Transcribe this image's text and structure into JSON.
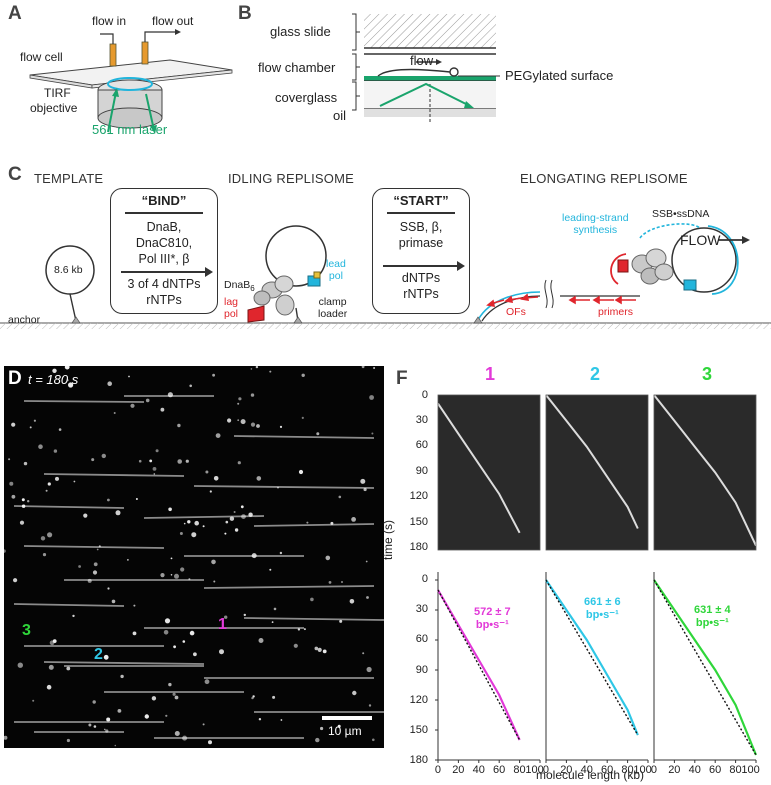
{
  "panels": {
    "a": "A",
    "b": "B",
    "c": "C",
    "d": "D",
    "f": "F"
  },
  "panel_a": {
    "flow_in": "flow in",
    "flow_out": "flow out",
    "flow_cell": "flow cell",
    "tirf": "TIRF",
    "objective": "objective",
    "laser": "561 nm laser"
  },
  "panel_b": {
    "glass_slide": "glass slide",
    "flow_chamber": "flow chamber",
    "coverglass": "coverglass",
    "oil": "oil",
    "flow": "flow",
    "peg_surface": "PEGylated surface"
  },
  "panel_c": {
    "template_head": "TEMPLATE",
    "idling_head": "IDLING REPLISOME",
    "elongating_head": "ELONGATING REPLISOME",
    "bind_title": "“BIND”",
    "bind_lines": [
      "DnaB,",
      "DnaC810,",
      "Pol III*, β"
    ],
    "bind_bottom": [
      "3 of 4 dNTPs",
      "rNTPs"
    ],
    "start_title": "“START”",
    "start_lines": [
      "SSB, β,",
      "primase"
    ],
    "start_bottom": [
      "dNTPs",
      "rNTPs"
    ],
    "plasmid": "8.6 kb",
    "anchor": "anchor",
    "dnab": "DnaB",
    "dnab_sub": "6",
    "lead_pol": [
      "lead",
      "pol"
    ],
    "lag_pol": [
      "lag",
      "pol"
    ],
    "clamp_loader": [
      "clamp",
      "loader"
    ],
    "leading_strand": [
      "leading-strand",
      "synthesis"
    ],
    "ssb": "SSB•ssDNA",
    "flow": "FLOW",
    "ofs": "OFs",
    "primers": "primers"
  },
  "panel_d": {
    "time_label": "t = 180 s",
    "scale_bar": "10 µm",
    "molecule_labels": [
      {
        "text": "1",
        "color": "#e23ad8"
      },
      {
        "text": "2",
        "color": "#2fc7e6"
      },
      {
        "text": "3",
        "color": "#2fd63a"
      }
    ]
  },
  "panel_f": {
    "y_label": "time (s)",
    "x_label": "molecule length (kb)",
    "y_ticks": [
      "0",
      "30",
      "60",
      "90",
      "120",
      "150",
      "180"
    ],
    "x_ticks": [
      "0",
      "20",
      "40",
      "60",
      "80",
      "100"
    ],
    "kymographs": [
      {
        "num": "1",
        "color": "#e23ad8",
        "rate": "572 ± 7",
        "unit": "bp•s⁻¹"
      },
      {
        "num": "2",
        "color": "#2fc7e6",
        "rate": "661 ± 6",
        "unit": "bp•s⁻¹"
      },
      {
        "num": "3",
        "color": "#2fd63a",
        "rate": "631 ± 4",
        "unit": "bp•s⁻¹"
      }
    ]
  },
  "chart_data": [
    {
      "type": "line",
      "series": [
        {
          "name": "1",
          "x": [
            0,
            20,
            40,
            60,
            80
          ],
          "y": [
            10,
            45,
            80,
            115,
            160
          ]
        }
      ],
      "xlabel": "",
      "ylabel": "",
      "xlim": [
        0,
        100
      ],
      "ylim": [
        180,
        0
      ]
    },
    {
      "type": "line",
      "series": [
        {
          "name": "2",
          "x": [
            0,
            20,
            40,
            60,
            80,
            90
          ],
          "y": [
            0,
            30,
            60,
            95,
            130,
            155
          ]
        }
      ],
      "xlabel": "",
      "ylabel": "",
      "xlim": [
        0,
        100
      ],
      "ylim": [
        180,
        0
      ]
    },
    {
      "type": "line",
      "series": [
        {
          "name": "3",
          "x": [
            0,
            20,
            40,
            60,
            80,
            100
          ],
          "y": [
            0,
            30,
            60,
            90,
            125,
            175
          ]
        }
      ],
      "xlabel": "",
      "ylabel": "",
      "xlim": [
        0,
        100
      ],
      "ylim": [
        180,
        0
      ]
    }
  ]
}
